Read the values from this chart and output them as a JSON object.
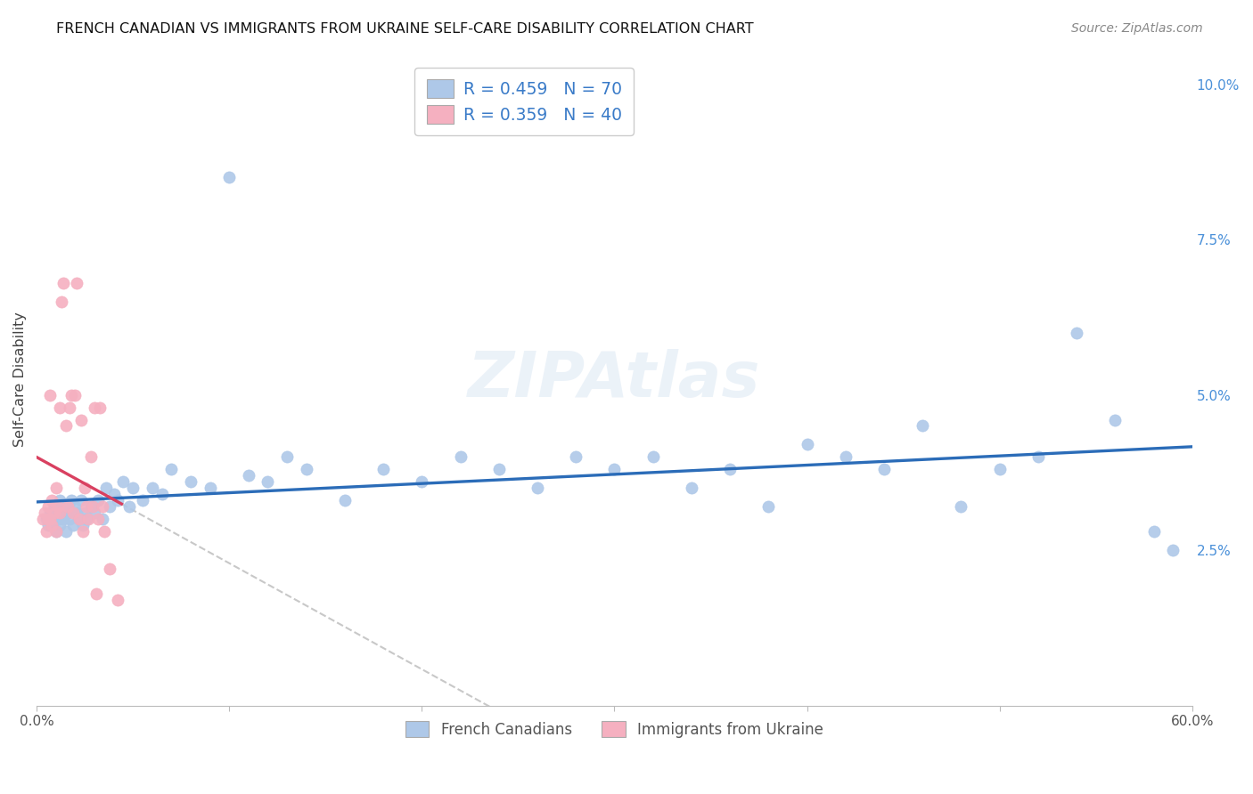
{
  "title": "FRENCH CANADIAN VS IMMIGRANTS FROM UKRAINE SELF-CARE DISABILITY CORRELATION CHART",
  "source": "Source: ZipAtlas.com",
  "ylabel": "Self-Care Disability",
  "x_min": 0.0,
  "x_max": 0.6,
  "y_min": 0.0,
  "y_max": 0.105,
  "y_ticks": [
    0.025,
    0.05,
    0.075,
    0.1
  ],
  "y_tick_labels": [
    "2.5%",
    "5.0%",
    "7.5%",
    "10.0%"
  ],
  "blue_R": 0.459,
  "blue_N": 70,
  "pink_R": 0.359,
  "pink_N": 40,
  "blue_color": "#aec8e8",
  "pink_color": "#f5b0c0",
  "blue_line_color": "#2b6cb8",
  "pink_line_color": "#d94060",
  "dashed_line_color": "#c8c8c8",
  "legend_blue_label": "R = 0.459   N = 70",
  "legend_pink_label": "R = 0.359   N = 40",
  "bottom_legend_blue": "French Canadians",
  "bottom_legend_pink": "Immigrants from Ukraine",
  "blue_x": [
    0.005,
    0.006,
    0.007,
    0.008,
    0.009,
    0.01,
    0.01,
    0.011,
    0.012,
    0.012,
    0.013,
    0.014,
    0.015,
    0.015,
    0.016,
    0.017,
    0.018,
    0.019,
    0.02,
    0.021,
    0.022,
    0.023,
    0.024,
    0.025,
    0.026,
    0.028,
    0.03,
    0.032,
    0.034,
    0.036,
    0.038,
    0.04,
    0.042,
    0.045,
    0.048,
    0.05,
    0.055,
    0.06,
    0.065,
    0.07,
    0.08,
    0.09,
    0.1,
    0.11,
    0.12,
    0.13,
    0.14,
    0.16,
    0.18,
    0.2,
    0.22,
    0.24,
    0.26,
    0.28,
    0.3,
    0.32,
    0.34,
    0.36,
    0.38,
    0.4,
    0.42,
    0.44,
    0.46,
    0.48,
    0.5,
    0.52,
    0.54,
    0.56,
    0.58,
    0.59
  ],
  "blue_y": [
    0.03,
    0.029,
    0.031,
    0.03,
    0.032,
    0.031,
    0.028,
    0.03,
    0.029,
    0.033,
    0.031,
    0.03,
    0.032,
    0.028,
    0.031,
    0.03,
    0.033,
    0.029,
    0.032,
    0.031,
    0.03,
    0.033,
    0.029,
    0.031,
    0.03,
    0.032,
    0.031,
    0.033,
    0.03,
    0.035,
    0.032,
    0.034,
    0.033,
    0.036,
    0.032,
    0.035,
    0.033,
    0.035,
    0.034,
    0.038,
    0.036,
    0.035,
    0.085,
    0.037,
    0.036,
    0.04,
    0.038,
    0.033,
    0.038,
    0.036,
    0.04,
    0.038,
    0.035,
    0.04,
    0.038,
    0.04,
    0.035,
    0.038,
    0.032,
    0.042,
    0.04,
    0.038,
    0.045,
    0.032,
    0.038,
    0.04,
    0.06,
    0.046,
    0.028,
    0.025
  ],
  "pink_x": [
    0.003,
    0.004,
    0.005,
    0.006,
    0.006,
    0.007,
    0.007,
    0.008,
    0.008,
    0.009,
    0.01,
    0.01,
    0.011,
    0.012,
    0.012,
    0.013,
    0.014,
    0.015,
    0.016,
    0.017,
    0.018,
    0.019,
    0.02,
    0.021,
    0.022,
    0.023,
    0.024,
    0.025,
    0.026,
    0.027,
    0.028,
    0.029,
    0.03,
    0.031,
    0.032,
    0.033,
    0.034,
    0.035,
    0.038,
    0.042
  ],
  "pink_y": [
    0.03,
    0.031,
    0.028,
    0.032,
    0.03,
    0.03,
    0.05,
    0.029,
    0.033,
    0.031,
    0.028,
    0.035,
    0.032,
    0.031,
    0.048,
    0.065,
    0.068,
    0.045,
    0.032,
    0.048,
    0.05,
    0.031,
    0.05,
    0.068,
    0.03,
    0.046,
    0.028,
    0.035,
    0.032,
    0.03,
    0.04,
    0.032,
    0.048,
    0.018,
    0.03,
    0.048,
    0.032,
    0.028,
    0.022,
    0.017
  ]
}
